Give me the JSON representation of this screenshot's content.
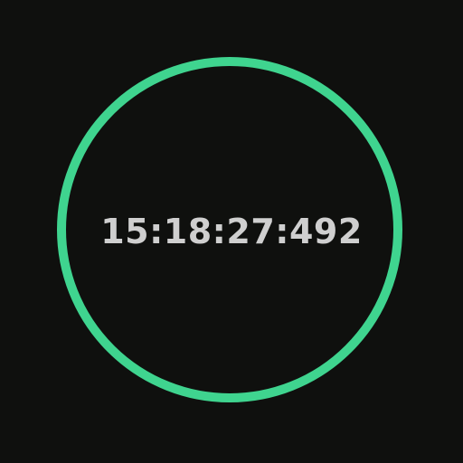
{
  "timer": {
    "display": "15:18:27:492",
    "ring_color": "#3fd48f",
    "text_color": "#cfcfcf",
    "background_color": "#0f100e",
    "ring_icon": "progress-ring-icon"
  }
}
